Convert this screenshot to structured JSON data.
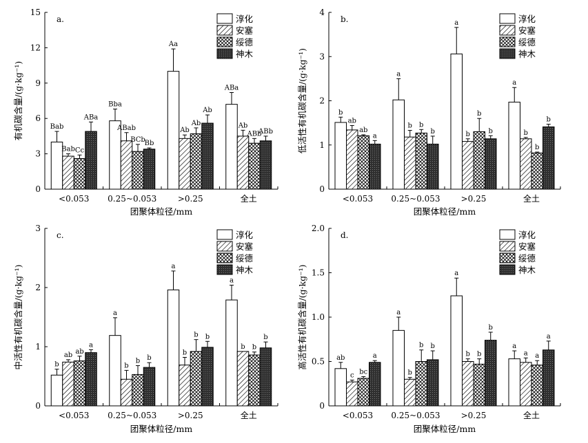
{
  "figure": {
    "fill_colors": {
      "white": "#ffffff",
      "dark": "#2f2f2f",
      "line": "#000000"
    }
  },
  "chart_data": [
    {
      "type": "bar",
      "panel_label": "a.",
      "xlabel": "团聚体粒径/mm",
      "ylabel": "有机碳含量/(g·kg⁻¹)",
      "ylim": [
        0,
        15
      ],
      "yticks": [
        "0",
        "3",
        "6",
        "9",
        "12",
        "15"
      ],
      "categories": [
        "<0.053",
        "0.25~0.053",
        ">0.25",
        "全土"
      ],
      "legend": [
        "淳化",
        "安塞",
        "绥德",
        "神木"
      ],
      "series": [
        {
          "name": "淳化",
          "values": [
            4.0,
            5.8,
            10.0,
            7.2
          ],
          "errors": [
            0.9,
            1.0,
            1.9,
            1.0
          ],
          "labels": [
            "Bab",
            "Bba",
            "Aa",
            "ABa"
          ]
        },
        {
          "name": "安塞",
          "values": [
            2.8,
            4.1,
            4.3,
            4.5
          ],
          "errors": [
            0.2,
            0.7,
            0.3,
            0.5
          ],
          "labels": [
            "Bab",
            "ABab",
            "Ab",
            "Ab"
          ]
        },
        {
          "name": "绥德",
          "values": [
            2.6,
            3.2,
            4.7,
            3.9
          ],
          "errors": [
            0.3,
            0.6,
            0.5,
            0.4
          ],
          "labels": [
            "Cc",
            "BCb",
            "Ab",
            "ABb"
          ]
        },
        {
          "name": "神木",
          "values": [
            4.9,
            3.4,
            5.6,
            4.1
          ],
          "errors": [
            0.8,
            0.1,
            0.7,
            0.4
          ],
          "labels": [
            "ABa",
            "Bb",
            "Ab",
            "ABb"
          ]
        }
      ]
    },
    {
      "type": "bar",
      "panel_label": "b.",
      "xlabel": "团聚体粒径/mm",
      "ylabel": "低活性有机碳含量/(g·kg⁻¹)",
      "ylim": [
        0,
        4
      ],
      "yticks": [
        "0",
        "1",
        "2",
        "3",
        "4"
      ],
      "categories": [
        "<0.053",
        "0.25~0.053",
        ">0.25",
        "全土"
      ],
      "legend": [
        "淳化",
        "安塞",
        "绥德",
        "神木"
      ],
      "series": [
        {
          "name": "淳化",
          "values": [
            1.51,
            2.02,
            3.06,
            1.97
          ],
          "errors": [
            0.12,
            0.48,
            0.6,
            0.33
          ],
          "labels": [
            "b",
            "a",
            "a",
            "a"
          ]
        },
        {
          "name": "安塞",
          "values": [
            1.34,
            1.18,
            1.08,
            1.14
          ],
          "errors": [
            0.1,
            0.15,
            0.06,
            0.03
          ],
          "labels": [
            "ab",
            "b",
            "b",
            "b"
          ]
        },
        {
          "name": "绥德",
          "values": [
            1.21,
            1.27,
            1.3,
            0.82
          ],
          "errors": [
            0.02,
            0.08,
            0.3,
            0.02
          ],
          "labels": [
            "ab",
            "b",
            "b",
            "b"
          ]
        },
        {
          "name": "神木",
          "values": [
            1.02,
            1.02,
            1.14,
            1.41
          ],
          "errors": [
            0.08,
            0.18,
            0.07,
            0.06
          ],
          "labels": [
            "a",
            "b",
            "b",
            "b"
          ]
        }
      ]
    },
    {
      "type": "bar",
      "panel_label": "c.",
      "xlabel": "团聚体粒径/mm",
      "ylabel": "中活性有机碳含量/(g·kg⁻¹)",
      "ylim": [
        0,
        3
      ],
      "yticks": [
        "0",
        "1",
        "2",
        "3"
      ],
      "categories": [
        "<0.053",
        "0.25~0.053",
        ">0.25",
        "全土"
      ],
      "legend": [
        "淳化",
        "安塞",
        "绥德",
        "神木"
      ],
      "series": [
        {
          "name": "淳化",
          "values": [
            0.52,
            1.19,
            1.96,
            1.79
          ],
          "errors": [
            0.1,
            0.3,
            0.32,
            0.25
          ],
          "labels": [
            "b",
            "a",
            "a",
            "a"
          ]
        },
        {
          "name": "安塞",
          "values": [
            0.74,
            0.45,
            0.69,
            0.92
          ],
          "errors": [
            0.04,
            0.15,
            0.13,
            0.0
          ],
          "labels": [
            "ab",
            "b",
            "b",
            "b"
          ]
        },
        {
          "name": "绥德",
          "values": [
            0.76,
            0.53,
            0.92,
            0.86
          ],
          "errors": [
            0.08,
            0.15,
            0.2,
            0.05
          ],
          "labels": [
            "ab",
            "b",
            "b",
            "b"
          ]
        },
        {
          "name": "神木",
          "values": [
            0.9,
            0.65,
            0.99,
            0.98
          ],
          "errors": [
            0.05,
            0.08,
            0.1,
            0.1
          ],
          "labels": [
            "a",
            "b",
            "b",
            "b"
          ]
        }
      ]
    },
    {
      "type": "bar",
      "panel_label": "d.",
      "xlabel": "团聚体粒径/mm",
      "ylabel": "高活性有机碳含量/(g·kg⁻¹)",
      "ylim": [
        0,
        2
      ],
      "yticks": [
        "0",
        "0.5",
        "1.0",
        "1.5",
        "2.0"
      ],
      "categories": [
        "<0.053",
        "0.25~0.053",
        ">0.25",
        "全土"
      ],
      "legend": [
        "淳化",
        "安塞",
        "绥德",
        "神木"
      ],
      "series": [
        {
          "name": "淳化",
          "values": [
            0.42,
            0.85,
            1.24,
            0.53
          ],
          "errors": [
            0.07,
            0.15,
            0.2,
            0.09
          ],
          "labels": [
            "ab",
            "a",
            "a",
            "a"
          ]
        },
        {
          "name": "安塞",
          "values": [
            0.27,
            0.3,
            0.5,
            0.49
          ],
          "errors": [
            0.02,
            0.02,
            0.03,
            0.05
          ],
          "labels": [
            "c",
            "b",
            "b",
            "a"
          ]
        },
        {
          "name": "绥德",
          "values": [
            0.31,
            0.5,
            0.47,
            0.46
          ],
          "errors": [
            0.02,
            0.13,
            0.06,
            0.05
          ],
          "labels": [
            "bc",
            "b",
            "b",
            "a"
          ]
        },
        {
          "name": "神木",
          "values": [
            0.49,
            0.52,
            0.74,
            0.63
          ],
          "errors": [
            0.02,
            0.1,
            0.09,
            0.1
          ],
          "labels": [
            "a",
            "b",
            "b",
            "a"
          ]
        }
      ]
    }
  ]
}
